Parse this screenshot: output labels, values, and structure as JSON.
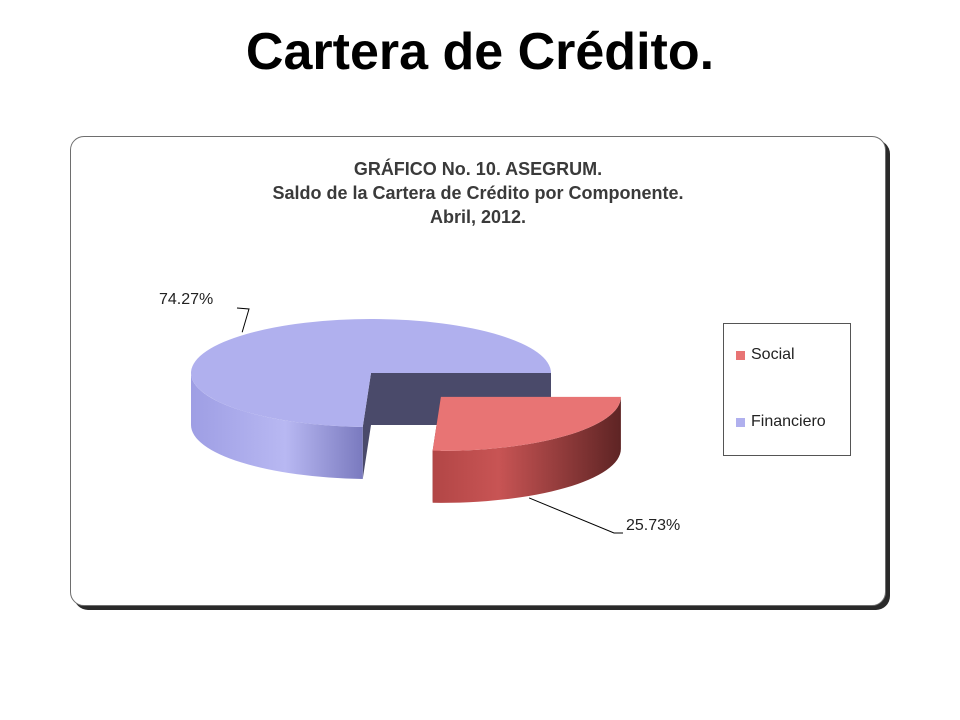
{
  "slide": {
    "title": "Cartera de Crédito."
  },
  "chart_data": {
    "type": "pie",
    "title_lines": [
      "GRÁFICO No. 10. ASEGRUM.",
      "Saldo de la Cartera de Crédito por Componente.",
      "Abril, 2012."
    ],
    "categories": [
      "Social",
      "Financiero"
    ],
    "values": [
      25.73,
      74.27
    ],
    "data_labels": [
      "25.73%",
      "74.27%"
    ],
    "colors": [
      "#e87474",
      "#b0b0ee"
    ],
    "exploded": [
      "Social"
    ],
    "style": "3d",
    "legend": {
      "placement": "right"
    }
  }
}
